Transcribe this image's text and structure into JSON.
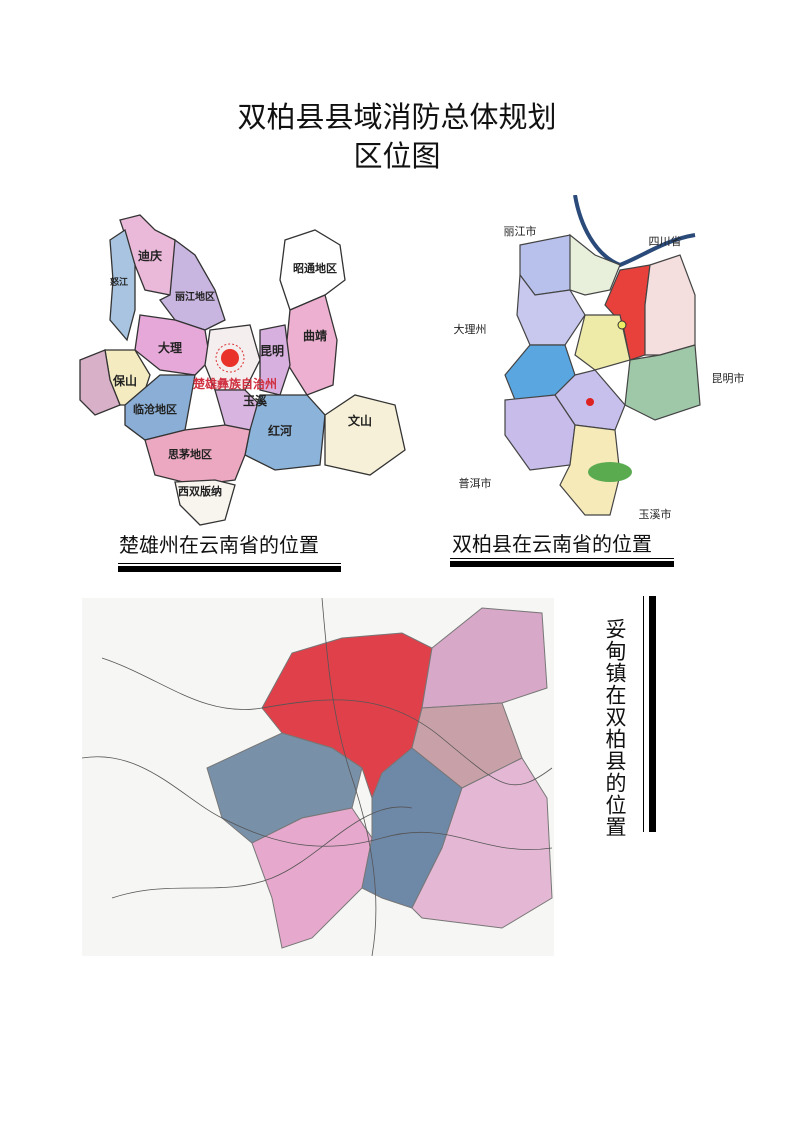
{
  "title": {
    "line1": "双柏县县域消防总体规划",
    "line2": "区位图"
  },
  "map1": {
    "caption": "楚雄州在云南省的位置",
    "regions": [
      "迪庆",
      "怒江",
      "丽江地区",
      "昭通地区",
      "大理",
      "保山",
      "楚雄彝族自治州",
      "昆明",
      "曲靖",
      "临沧地区",
      "玉溪",
      "文山",
      "红河",
      "思茅地区",
      "西双版纳"
    ],
    "highlight_color": "#e8322a"
  },
  "map2": {
    "caption": "双柏县在云南省的位置",
    "neighbors": [
      "丽江市",
      "四川省",
      "大理州",
      "昆明市",
      "普洱市",
      "玉溪市"
    ],
    "highlight_color": "#e8403a"
  },
  "map3": {
    "caption": "妥甸镇在双柏县的位置",
    "highlight_color": "#e0404a"
  }
}
